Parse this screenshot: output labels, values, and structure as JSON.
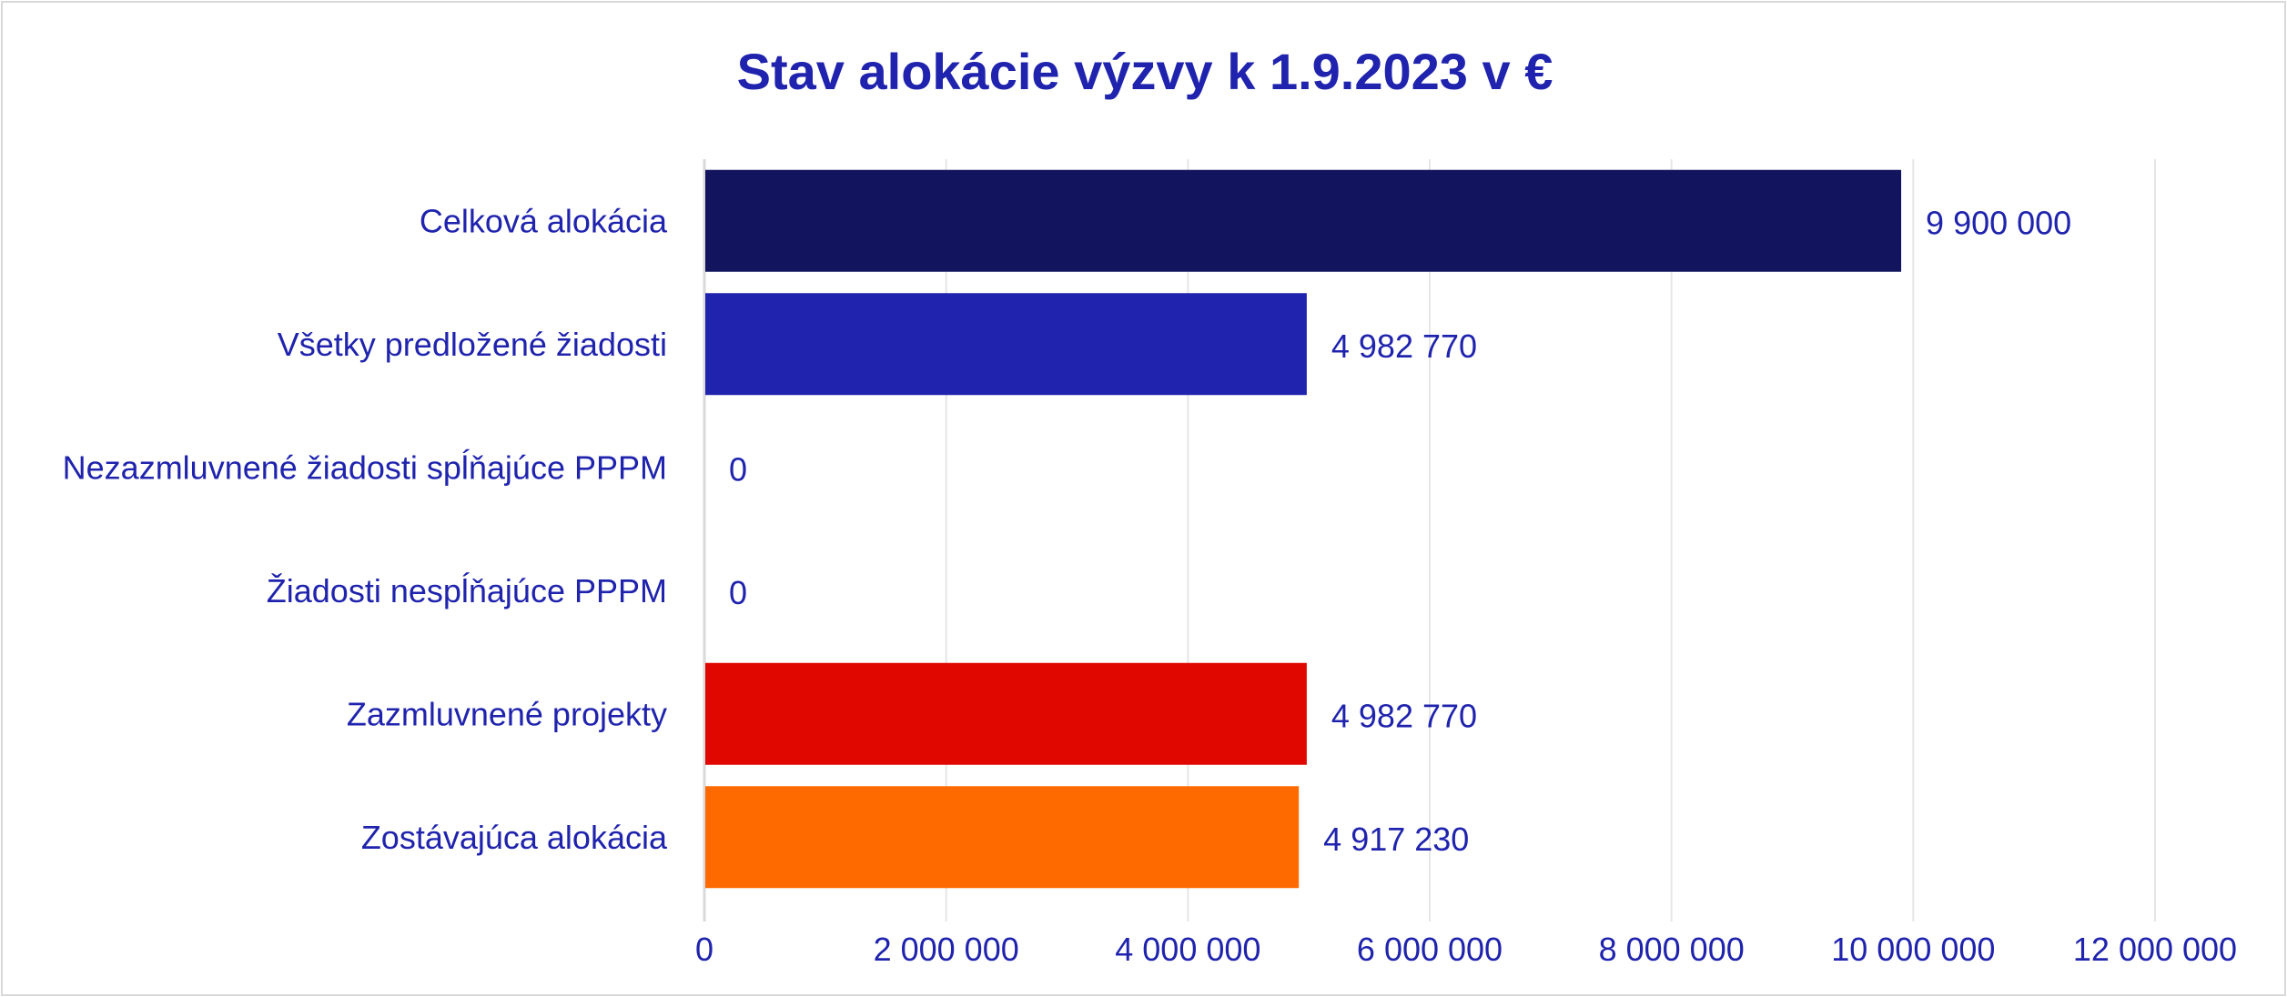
{
  "chart_data": {
    "type": "bar",
    "orientation": "horizontal",
    "title": "Stav alokácie výzvy k 1.9.2023 v €",
    "xlabel": "",
    "ylabel": "",
    "xlim": [
      0,
      12000000
    ],
    "x_ticks": [
      0,
      2000000,
      4000000,
      6000000,
      8000000,
      10000000,
      12000000
    ],
    "x_tick_labels": [
      "0",
      "2 000 000",
      "4 000 000",
      "6 000 000",
      "8 000 000",
      "10 000 000",
      "12 000 000"
    ],
    "grid": true,
    "legend": "none",
    "categories": [
      "Celková alokácia",
      "Všetky predložené žiadosti",
      "Nezazmluvnené žiadosti spĺňajúce PPPM",
      "Žiadosti nespĺňajúce PPPM",
      "Zazmluvnené projekty",
      "Zostávajúca alokácia"
    ],
    "values": [
      9900000,
      4982770,
      0,
      0,
      4982770,
      4917230
    ],
    "value_labels": [
      "9 900 000",
      "4 982 770",
      "0",
      "0",
      "4 982 770",
      "4 917 230"
    ],
    "bar_colors": [
      "#12155e",
      "#1f23ad",
      "#1f23ad",
      "#1f23ad",
      "#e00700",
      "#ff6a00"
    ]
  },
  "colors": {
    "text": "#1f23ad",
    "grid": "#e6e6e6",
    "axis": "#d9d9d9",
    "frame": "#d9d9d9"
  }
}
